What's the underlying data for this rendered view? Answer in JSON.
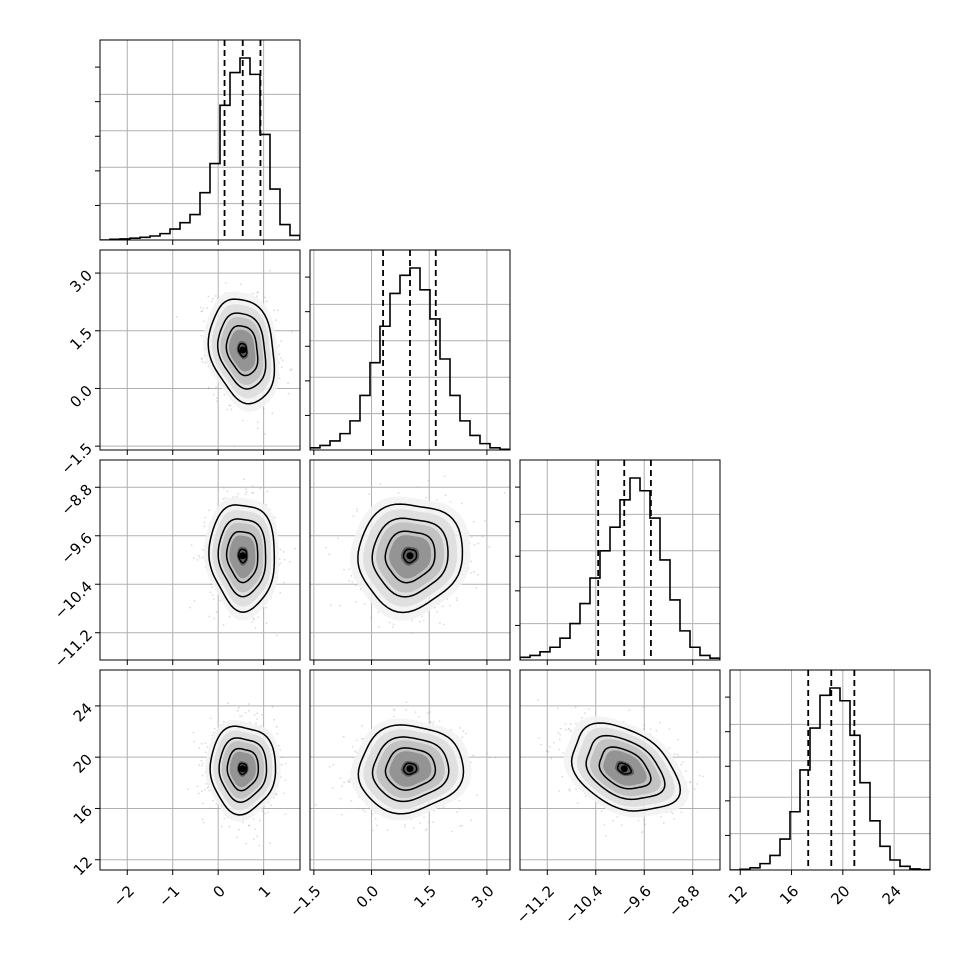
{
  "chart_data": {
    "type": "corner",
    "grid": true,
    "parameters": [
      {
        "range": [
          -2.6,
          1.8
        ],
        "ticks": [
          -2,
          -1,
          0,
          1
        ],
        "tick_labels": [
          "−2",
          "−1",
          "0",
          "1"
        ],
        "quantiles": [
          0.14,
          0.54,
          0.93
        ],
        "mean": 0.54,
        "sd": 0.36,
        "hist_edges": [
          -2.6,
          -2.38,
          -2.16,
          -1.94,
          -1.72,
          -1.5,
          -1.28,
          -1.06,
          -0.84,
          -0.62,
          -0.4,
          -0.18,
          0.04,
          0.26,
          0.48,
          0.7,
          0.92,
          1.14,
          1.36,
          1.58,
          1.8
        ],
        "hist_heights": [
          0.0,
          0.004,
          0.006,
          0.01,
          0.015,
          0.022,
          0.035,
          0.06,
          0.095,
          0.14,
          0.26,
          0.42,
          0.74,
          0.92,
          1.0,
          0.91,
          0.58,
          0.28,
          0.085,
          0.025
        ]
      },
      {
        "range": [
          -1.6,
          3.6
        ],
        "ticks": [
          -1.5,
          0.0,
          1.5,
          3.0
        ],
        "tick_labels": [
          "−1.5",
          "0.0",
          "1.5",
          "3.0"
        ],
        "quantiles": [
          0.3,
          1.0,
          1.67
        ],
        "mean": 1.0,
        "sd": 0.68,
        "hist_edges": [
          -1.6,
          -1.34,
          -1.08,
          -0.82,
          -0.56,
          -0.3,
          -0.04,
          0.22,
          0.48,
          0.74,
          1.0,
          1.26,
          1.52,
          1.78,
          2.04,
          2.3,
          2.56,
          2.82,
          3.08,
          3.34,
          3.6
        ],
        "hist_heights": [
          0.012,
          0.025,
          0.05,
          0.09,
          0.16,
          0.3,
          0.48,
          0.68,
          0.86,
          0.96,
          1.0,
          0.88,
          0.72,
          0.5,
          0.3,
          0.16,
          0.08,
          0.035,
          0.012,
          0.004
        ]
      },
      {
        "range": [
          -11.65,
          -8.35
        ],
        "ticks": [
          -11.2,
          -10.4,
          -9.6,
          -8.8
        ],
        "tick_labels": [
          "−11.2",
          "−10.4",
          "−9.6",
          "−8.8"
        ],
        "quantiles": [
          -10.36,
          -9.93,
          -9.49
        ],
        "mean": -9.93,
        "sd": 0.44,
        "hist_edges": [
          -11.65,
          -11.485,
          -11.32,
          -11.155,
          -10.99,
          -10.825,
          -10.66,
          -10.495,
          -10.33,
          -10.165,
          -10.0,
          -9.835,
          -9.67,
          -9.505,
          -9.34,
          -9.175,
          -9.01,
          -8.845,
          -8.68,
          -8.515,
          -8.35
        ],
        "hist_heights": [
          0.015,
          0.025,
          0.045,
          0.07,
          0.12,
          0.2,
          0.31,
          0.45,
          0.6,
          0.73,
          0.88,
          1.0,
          0.93,
          0.78,
          0.55,
          0.33,
          0.16,
          0.07,
          0.025,
          0.01
        ]
      },
      {
        "range": [
          11.2,
          26.8
        ],
        "ticks": [
          12,
          16,
          20,
          24
        ],
        "tick_labels": [
          "12",
          "16",
          "20",
          "24"
        ],
        "quantiles": [
          17.3,
          19.1,
          20.9
        ],
        "mean": 19.1,
        "sd": 1.7,
        "hist_edges": [
          11.2,
          11.98,
          12.76,
          13.54,
          14.32,
          15.1,
          15.88,
          16.66,
          17.44,
          18.22,
          19.0,
          19.78,
          20.56,
          21.34,
          22.12,
          22.9,
          23.68,
          24.46,
          25.24,
          26.02,
          26.8
        ],
        "hist_heights": [
          0.0,
          0.004,
          0.012,
          0.035,
          0.08,
          0.17,
          0.32,
          0.55,
          0.78,
          0.96,
          1.0,
          0.93,
          0.74,
          0.48,
          0.27,
          0.13,
          0.055,
          0.02,
          0.006,
          0.002
        ]
      }
    ],
    "correlations": [
      [
        1.0,
        -0.2,
        -0.05,
        0.0
      ],
      [
        -0.2,
        1.0,
        0.05,
        0.05
      ],
      [
        -0.05,
        0.05,
        1.0,
        -0.35
      ],
      [
        0.0,
        0.05,
        -0.35,
        1.0
      ]
    ],
    "colors": {
      "line": "#000000",
      "grid": "#b0b0b0",
      "scatter": "#9a9a9a"
    }
  }
}
